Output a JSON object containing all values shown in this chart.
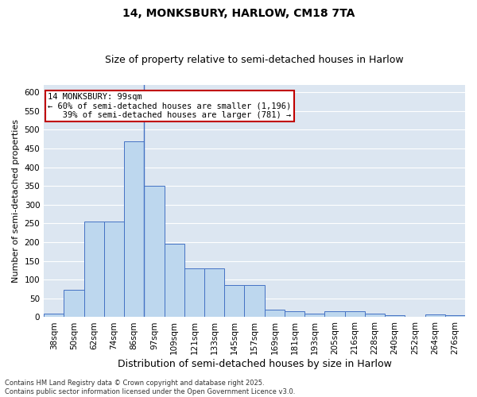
{
  "title": "14, MONKSBURY, HARLOW, CM18 7TA",
  "subtitle": "Size of property relative to semi-detached houses in Harlow",
  "xlabel": "Distribution of semi-detached houses by size in Harlow",
  "ylabel": "Number of semi-detached properties",
  "categories": [
    "38sqm",
    "50sqm",
    "62sqm",
    "74sqm",
    "86sqm",
    "97sqm",
    "109sqm",
    "121sqm",
    "133sqm",
    "145sqm",
    "157sqm",
    "169sqm",
    "181sqm",
    "193sqm",
    "205sqm",
    "216sqm",
    "228sqm",
    "240sqm",
    "252sqm",
    "264sqm",
    "276sqm"
  ],
  "values": [
    10,
    72,
    255,
    255,
    470,
    350,
    195,
    130,
    130,
    85,
    85,
    20,
    15,
    10,
    15,
    15,
    10,
    5,
    0,
    8,
    5
  ],
  "bar_color": "#bdd7ee",
  "bar_edge_color": "#4472c4",
  "annotation_line1": "14 MONKSBURY: 99sqm",
  "annotation_line2": "← 60% of semi-detached houses are smaller (1,196)",
  "annotation_line3": "   39% of semi-detached houses are larger (781) →",
  "annotation_box_edge_color": "#c00000",
  "footer_text": "Contains HM Land Registry data © Crown copyright and database right 2025.\nContains public sector information licensed under the Open Government Licence v3.0.",
  "plot_background_color": "#dce6f1",
  "ylim": [
    0,
    620
  ],
  "yticks": [
    0,
    50,
    100,
    150,
    200,
    250,
    300,
    350,
    400,
    450,
    500,
    550,
    600
  ],
  "property_line_x": 4.5,
  "title_fontsize": 10,
  "subtitle_fontsize": 9,
  "ylabel_fontsize": 8,
  "xlabel_fontsize": 9,
  "tick_fontsize": 7.5,
  "annotation_fontsize": 7.5,
  "footer_fontsize": 6.0
}
